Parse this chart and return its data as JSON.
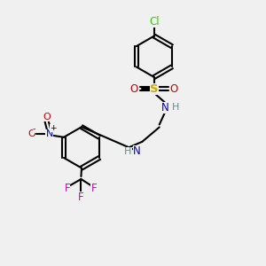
{
  "bg_color": "#f0f0f0",
  "atom_colors": {
    "C": "#000000",
    "H": "#5a9090",
    "N": "#0000cc",
    "O": "#cc0000",
    "S": "#ccaa00",
    "Cl": "#33cc00",
    "F": "#cc00cc"
  },
  "bond_color": "#000000",
  "bond_width": 1.5
}
